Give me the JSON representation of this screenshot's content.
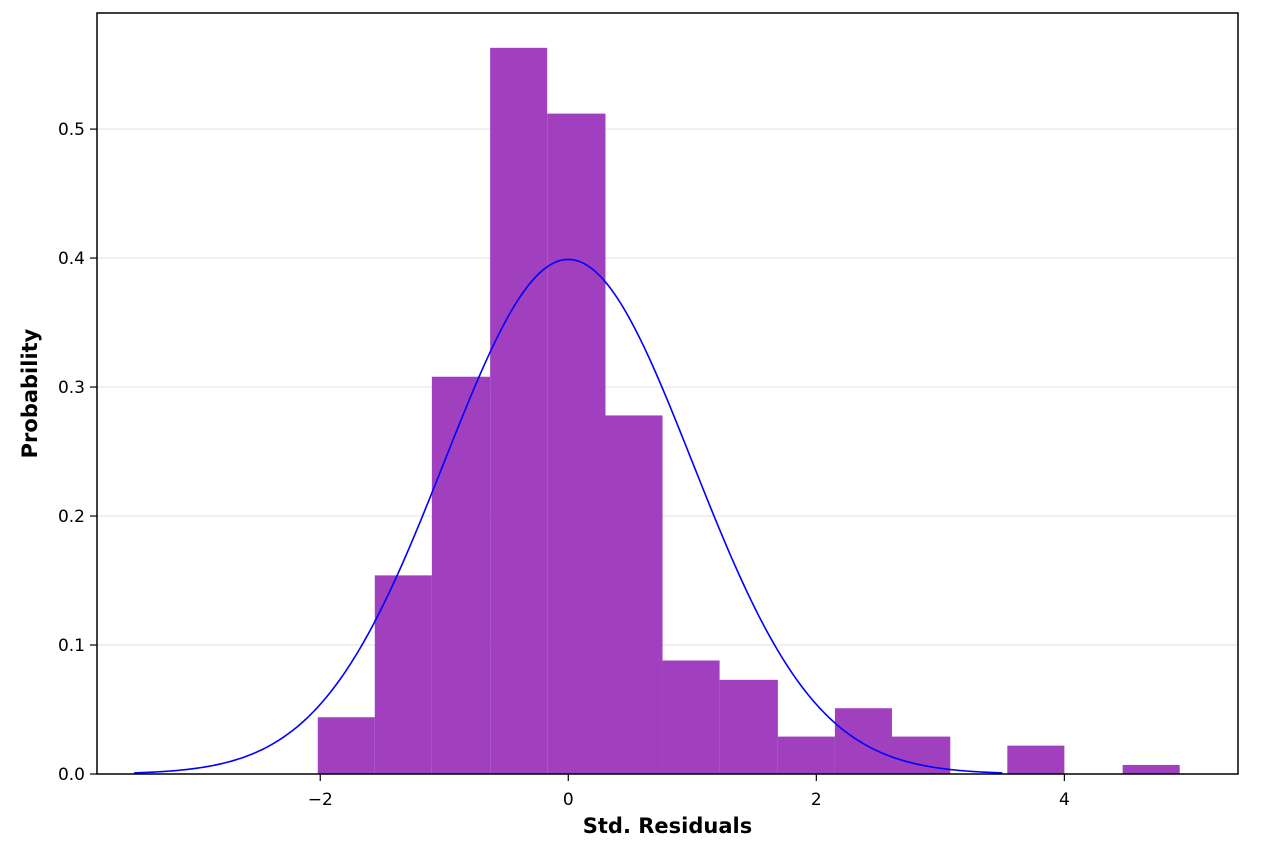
{
  "chart_data": {
    "type": "bar",
    "subtype": "histogram-with-density",
    "title": "",
    "xlabel": "Std. Residuals",
    "ylabel": "Probability",
    "xlim": [
      -3.8,
      5.4
    ],
    "ylim": [
      0,
      0.59
    ],
    "grid": "horizontal",
    "xticks": [
      -2,
      0,
      2,
      4
    ],
    "xtick_labels": [
      "−2",
      "0",
      "2",
      "4"
    ],
    "yticks": [
      0.0,
      0.1,
      0.2,
      0.3,
      0.4,
      0.5
    ],
    "ytick_labels": [
      "0.0",
      "0.1",
      "0.2",
      "0.3",
      "0.4",
      "0.5"
    ],
    "bins": [
      {
        "x0": -2.02,
        "x1": -1.56,
        "value": 0.044
      },
      {
        "x0": -1.56,
        "x1": -1.1,
        "value": 0.154
      },
      {
        "x0": -1.1,
        "x1": -0.63,
        "value": 0.308
      },
      {
        "x0": -0.63,
        "x1": -0.17,
        "value": 0.563
      },
      {
        "x0": -0.17,
        "x1": 0.3,
        "value": 0.512
      },
      {
        "x0": 0.3,
        "x1": 0.76,
        "value": 0.278
      },
      {
        "x0": 0.76,
        "x1": 1.22,
        "value": 0.088
      },
      {
        "x0": 1.22,
        "x1": 1.69,
        "value": 0.073
      },
      {
        "x0": 1.69,
        "x1": 2.15,
        "value": 0.029
      },
      {
        "x0": 2.15,
        "x1": 2.61,
        "value": 0.051
      },
      {
        "x0": 2.61,
        "x1": 3.08,
        "value": 0.029
      },
      {
        "x0": 3.08,
        "x1": 3.54,
        "value": 0.0
      },
      {
        "x0": 3.54,
        "x1": 4.0,
        "value": 0.022
      },
      {
        "x0": 4.0,
        "x1": 4.47,
        "value": 0.0
      },
      {
        "x0": 4.47,
        "x1": 4.93,
        "value": 0.007
      }
    ],
    "density_curve": {
      "distribution": "standard normal",
      "mean": 0,
      "std": 1,
      "x_range": [
        -3.5,
        3.5
      ]
    },
    "colors": {
      "bars": "#a040bf",
      "curve": "#0000ff",
      "grid": "#e6e6e6",
      "axes": "#000000"
    }
  }
}
